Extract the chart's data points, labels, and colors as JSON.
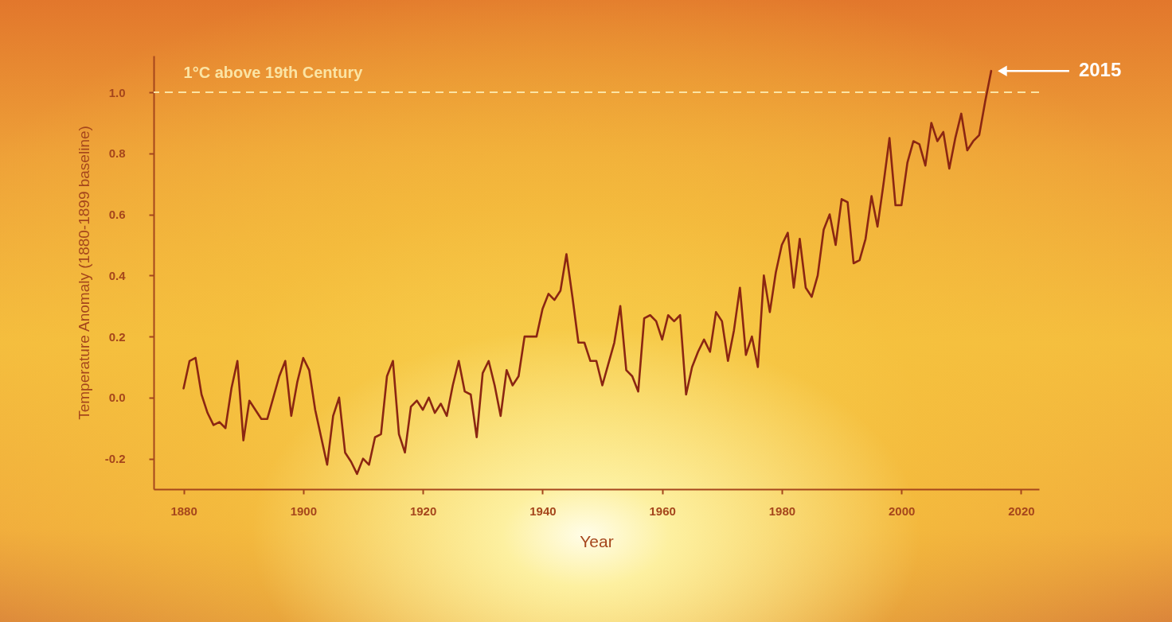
{
  "chart_data": {
    "type": "line",
    "xlabel": "Year",
    "ylabel": "Temperature Anomaly (1880-1899 baseline)",
    "x": [
      1880,
      1881,
      1882,
      1883,
      1884,
      1885,
      1886,
      1887,
      1888,
      1889,
      1890,
      1891,
      1892,
      1893,
      1894,
      1895,
      1896,
      1897,
      1898,
      1899,
      1900,
      1901,
      1902,
      1903,
      1904,
      1905,
      1906,
      1907,
      1908,
      1909,
      1910,
      1911,
      1912,
      1913,
      1914,
      1915,
      1916,
      1917,
      1918,
      1919,
      1920,
      1921,
      1922,
      1923,
      1924,
      1925,
      1926,
      1927,
      1928,
      1929,
      1930,
      1931,
      1932,
      1933,
      1934,
      1935,
      1936,
      1937,
      1938,
      1939,
      1940,
      1941,
      1942,
      1943,
      1944,
      1945,
      1946,
      1947,
      1948,
      1949,
      1950,
      1951,
      1952,
      1953,
      1954,
      1955,
      1956,
      1957,
      1958,
      1959,
      1960,
      1961,
      1962,
      1963,
      1964,
      1965,
      1966,
      1967,
      1968,
      1969,
      1970,
      1971,
      1972,
      1973,
      1974,
      1975,
      1976,
      1977,
      1978,
      1979,
      1980,
      1981,
      1982,
      1983,
      1984,
      1985,
      1986,
      1987,
      1988,
      1989,
      1990,
      1991,
      1992,
      1993,
      1994,
      1995,
      1996,
      1997,
      1998,
      1999,
      2000,
      2001,
      2002,
      2003,
      2004,
      2005,
      2006,
      2007,
      2008,
      2009,
      2010,
      2011,
      2012,
      2013,
      2014,
      2015
    ],
    "series": [
      {
        "color": "#8b2612",
        "values": [
          0.03,
          0.12,
          0.13,
          0.01,
          -0.05,
          -0.09,
          -0.08,
          -0.1,
          0.03,
          0.12,
          -0.14,
          -0.01,
          -0.04,
          -0.07,
          -0.07,
          0.0,
          0.07,
          0.12,
          -0.06,
          0.05,
          0.13,
          0.09,
          -0.04,
          -0.13,
          -0.22,
          -0.06,
          0.0,
          -0.18,
          -0.21,
          -0.25,
          -0.2,
          -0.22,
          -0.13,
          -0.12,
          0.07,
          0.12,
          -0.12,
          -0.18,
          -0.03,
          -0.01,
          -0.04,
          0.0,
          -0.05,
          -0.02,
          -0.06,
          0.04,
          0.12,
          0.02,
          0.01,
          -0.13,
          0.08,
          0.12,
          0.04,
          -0.06,
          0.09,
          0.04,
          0.07,
          0.2,
          0.2,
          0.2,
          0.29,
          0.34,
          0.32,
          0.35,
          0.47,
          0.33,
          0.18,
          0.18,
          0.12,
          0.12,
          0.04,
          0.11,
          0.18,
          0.3,
          0.09,
          0.07,
          0.02,
          0.26,
          0.27,
          0.25,
          0.19,
          0.27,
          0.25,
          0.27,
          0.01,
          0.1,
          0.15,
          0.19,
          0.15,
          0.28,
          0.25,
          0.12,
          0.22,
          0.36,
          0.14,
          0.2,
          0.1,
          0.4,
          0.28,
          0.41,
          0.5,
          0.54,
          0.36,
          0.52,
          0.36,
          0.33,
          0.4,
          0.55,
          0.6,
          0.5,
          0.65,
          0.64,
          0.44,
          0.45,
          0.52,
          0.66,
          0.56,
          0.7,
          0.85,
          0.63,
          0.63,
          0.77,
          0.84,
          0.83,
          0.76,
          0.9,
          0.84,
          0.87,
          0.75,
          0.85,
          0.93,
          0.81,
          0.84,
          0.86,
          0.97,
          1.07
        ]
      }
    ],
    "xlim": [
      1875,
      2023
    ],
    "xticks": [
      1880,
      1900,
      1920,
      1940,
      1960,
      1980,
      2000,
      2020
    ],
    "ylim": [
      -0.3,
      1.12
    ],
    "yticks": [
      -0.2,
      {
        "value": 0,
        "label": "0.0"
      },
      0.2,
      0.4,
      0.6,
      0.8,
      {
        "value": 1,
        "label": "1.0"
      }
    ],
    "ref_lines": [
      {
        "axis": "y",
        "value": 1.0,
        "label": "1°C above 19th Century",
        "color": "#fbe4a4",
        "line_style": "dashed"
      }
    ],
    "annotations": [
      "2015"
    ]
  }
}
